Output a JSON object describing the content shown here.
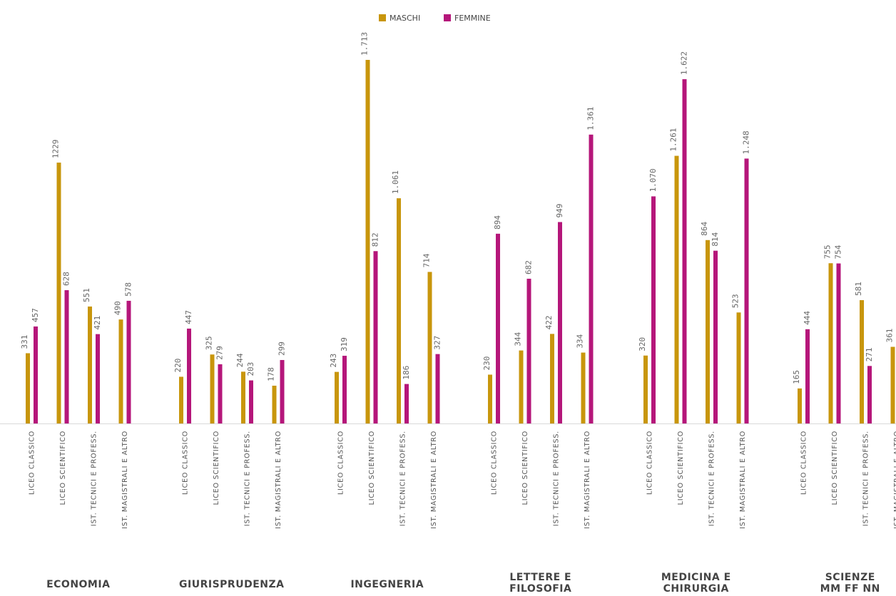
{
  "chart_data": {
    "type": "bar",
    "title": "",
    "xlabel": "",
    "ylabel": "",
    "ylim": [
      0,
      1800
    ],
    "grid": false,
    "legend_position": "top-center",
    "colors": {
      "MASCHI": "#C8960C",
      "FEMMINE": "#B5167A"
    },
    "subcategories": [
      "LICEO CLASSICO",
      "LICEO SCIENTIFICO",
      "IST. TECNICI E PROFESS.",
      "IST. MAGISTRALI E ALTRO"
    ],
    "groups": [
      {
        "label_lines": [
          "ECONOMIA"
        ],
        "maschi": [
          331,
          1229,
          551,
          490
        ],
        "femmine": [
          457,
          628,
          421,
          578
        ],
        "maschi_labels": [
          "331",
          "1229",
          "551",
          "490"
        ],
        "femmine_labels": [
          "457",
          "628",
          "421",
          "578"
        ]
      },
      {
        "label_lines": [
          "GIURISPRUDENZA"
        ],
        "maschi": [
          220,
          325,
          244,
          178
        ],
        "femmine": [
          447,
          279,
          203,
          299
        ],
        "maschi_labels": [
          "220",
          "325",
          "244",
          "178"
        ],
        "femmine_labels": [
          "447",
          "279",
          "203",
          "299"
        ]
      },
      {
        "label_lines": [
          "INGEGNERIA"
        ],
        "maschi": [
          243,
          1713,
          1061,
          714
        ],
        "femmine": [
          319,
          812,
          186,
          327
        ],
        "maschi_labels": [
          "243",
          "1.713",
          "1.061",
          "714"
        ],
        "femmine_labels": [
          "319",
          "812",
          "186",
          "327"
        ]
      },
      {
        "label_lines": [
          "LETTERE E",
          "FILOSOFIA"
        ],
        "maschi": [
          230,
          344,
          422,
          334
        ],
        "femmine": [
          894,
          682,
          949,
          1361
        ],
        "maschi_labels": [
          "230",
          "344",
          "422",
          "334"
        ],
        "femmine_labels": [
          "894",
          "682",
          "949",
          "1.361"
        ]
      },
      {
        "label_lines": [
          "MEDICINA E",
          "CHIRURGIA"
        ],
        "maschi": [
          320,
          1261,
          864,
          523
        ],
        "femmine": [
          1070,
          1622,
          814,
          1248
        ],
        "maschi_labels": [
          "320",
          "1.261",
          "864",
          "523"
        ],
        "femmine_labels": [
          "1.070",
          "1.622",
          "814",
          "1.248"
        ]
      },
      {
        "label_lines": [
          "SCIENZE",
          "MM FF NN"
        ],
        "maschi": [
          165,
          755,
          581,
          361
        ],
        "femmine": [
          444,
          754,
          271,
          null
        ],
        "maschi_labels": [
          "165",
          "755",
          "581",
          "361"
        ],
        "femmine_labels": [
          "444",
          "754",
          "271",
          ""
        ]
      }
    ],
    "series": [
      {
        "name": "MASCHI"
      },
      {
        "name": "FEMMINE"
      }
    ]
  }
}
